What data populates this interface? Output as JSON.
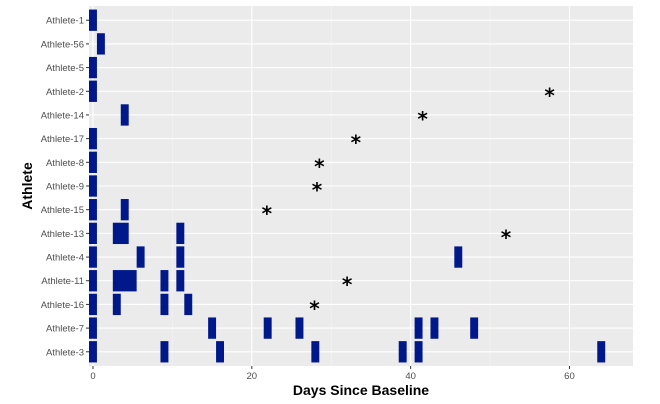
{
  "chart_data": {
    "type": "swimmer",
    "xlabel": "Days Since Baseline",
    "ylabel": "Athlete",
    "xlim": [
      -0.5,
      68
    ],
    "xticks": [
      0,
      20,
      40,
      60
    ],
    "grid": true,
    "bar_color": "#00188a",
    "categories": [
      "Athlete-1",
      "Athlete-56",
      "Athlete-5",
      "Athlete-2",
      "Athlete-14",
      "Athlete-17",
      "Athlete-8",
      "Athlete-9",
      "Athlete-15",
      "Athlete-13",
      "Athlete-4",
      "Athlete-11",
      "Athlete-16",
      "Athlete-7",
      "Athlete-3"
    ],
    "segments": [
      {
        "athlete": "Athlete-1",
        "start": -0.5,
        "end": 0.5
      },
      {
        "athlete": "Athlete-56",
        "start": 0.5,
        "end": 1.5
      },
      {
        "athlete": "Athlete-5",
        "start": -0.5,
        "end": 0.5
      },
      {
        "athlete": "Athlete-2",
        "start": -0.5,
        "end": 0.5
      },
      {
        "athlete": "Athlete-14",
        "start": 3.5,
        "end": 4.5
      },
      {
        "athlete": "Athlete-17",
        "start": -0.5,
        "end": 0.5
      },
      {
        "athlete": "Athlete-8",
        "start": -0.5,
        "end": 0.5
      },
      {
        "athlete": "Athlete-9",
        "start": -0.5,
        "end": 0.5
      },
      {
        "athlete": "Athlete-15",
        "start": -0.5,
        "end": 0.5
      },
      {
        "athlete": "Athlete-15",
        "start": 3.5,
        "end": 4.5
      },
      {
        "athlete": "Athlete-13",
        "start": -0.5,
        "end": 0.5
      },
      {
        "athlete": "Athlete-13",
        "start": 2.5,
        "end": 4.5
      },
      {
        "athlete": "Athlete-13",
        "start": 10.5,
        "end": 11.5
      },
      {
        "athlete": "Athlete-4",
        "start": -0.5,
        "end": 0.5
      },
      {
        "athlete": "Athlete-4",
        "start": 5.5,
        "end": 6.5
      },
      {
        "athlete": "Athlete-4",
        "start": 10.5,
        "end": 11.5
      },
      {
        "athlete": "Athlete-4",
        "start": 45.5,
        "end": 46.5
      },
      {
        "athlete": "Athlete-11",
        "start": -0.5,
        "end": 0.5
      },
      {
        "athlete": "Athlete-11",
        "start": 2.5,
        "end": 5.5
      },
      {
        "athlete": "Athlete-11",
        "start": 8.5,
        "end": 9.5
      },
      {
        "athlete": "Athlete-11",
        "start": 10.5,
        "end": 11.5
      },
      {
        "athlete": "Athlete-16",
        "start": -0.5,
        "end": 0.5
      },
      {
        "athlete": "Athlete-16",
        "start": 2.5,
        "end": 3.5
      },
      {
        "athlete": "Athlete-16",
        "start": 8.5,
        "end": 9.5
      },
      {
        "athlete": "Athlete-16",
        "start": 11.5,
        "end": 12.5
      },
      {
        "athlete": "Athlete-7",
        "start": -0.5,
        "end": 0.5
      },
      {
        "athlete": "Athlete-7",
        "start": 14.5,
        "end": 15.5
      },
      {
        "athlete": "Athlete-7",
        "start": 21.5,
        "end": 22.5
      },
      {
        "athlete": "Athlete-7",
        "start": 25.5,
        "end": 26.5
      },
      {
        "athlete": "Athlete-7",
        "start": 40.5,
        "end": 41.5
      },
      {
        "athlete": "Athlete-7",
        "start": 42.5,
        "end": 43.5
      },
      {
        "athlete": "Athlete-7",
        "start": 47.5,
        "end": 48.5
      },
      {
        "athlete": "Athlete-3",
        "start": -0.5,
        "end": 0.5
      },
      {
        "athlete": "Athlete-3",
        "start": 8.5,
        "end": 9.5
      },
      {
        "athlete": "Athlete-3",
        "start": 15.5,
        "end": 16.5
      },
      {
        "athlete": "Athlete-3",
        "start": 27.5,
        "end": 28.5
      },
      {
        "athlete": "Athlete-3",
        "start": 38.5,
        "end": 39.5
      },
      {
        "athlete": "Athlete-3",
        "start": 40.5,
        "end": 41.5
      },
      {
        "athlete": "Athlete-3",
        "start": 63.5,
        "end": 64.5
      }
    ],
    "markers": [
      {
        "athlete": "Athlete-2",
        "x": 57.5,
        "symbol": "*"
      },
      {
        "athlete": "Athlete-14",
        "x": 41.5,
        "symbol": "*"
      },
      {
        "athlete": "Athlete-17",
        "x": 33.1,
        "symbol": "*"
      },
      {
        "athlete": "Athlete-8",
        "x": 28.5,
        "symbol": "*"
      },
      {
        "athlete": "Athlete-9",
        "x": 28.2,
        "symbol": "*"
      },
      {
        "athlete": "Athlete-15",
        "x": 21.9,
        "symbol": "*"
      },
      {
        "athlete": "Athlete-13",
        "x": 52.0,
        "symbol": "*"
      },
      {
        "athlete": "Athlete-11",
        "x": 32.0,
        "symbol": "*"
      },
      {
        "athlete": "Athlete-16",
        "x": 27.9,
        "symbol": "*"
      }
    ]
  }
}
